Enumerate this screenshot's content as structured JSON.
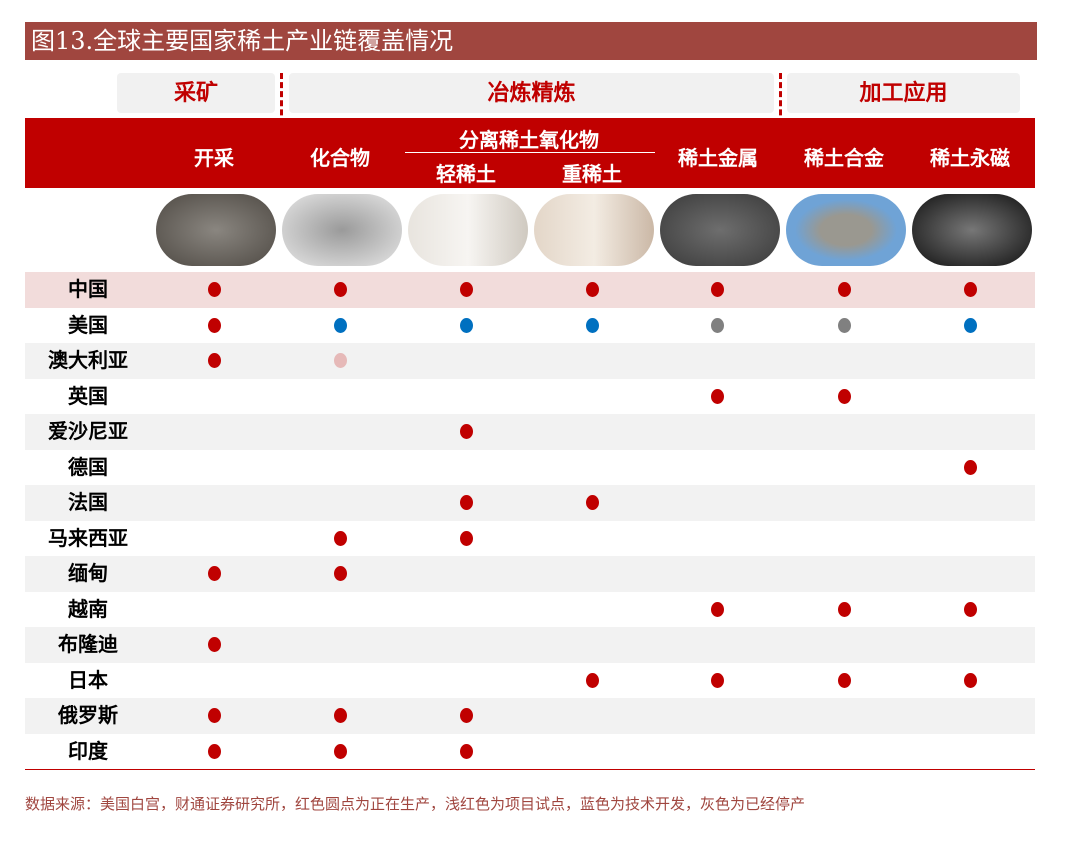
{
  "title": "图13.全球主要国家稀土产业链覆盖情况",
  "stages": [
    "采矿",
    "冶炼精炼",
    "加工应用"
  ],
  "headers": {
    "mining": "开采",
    "compound": "化合物",
    "separation": "分离稀土氧化物",
    "light": "轻稀土",
    "heavy": "重稀土",
    "metal": "稀土金属",
    "alloy": "稀土合金",
    "magnet": "稀土永磁"
  },
  "colors": {
    "R": "#c00000",
    "B": "#0070c0",
    "G": "#808080",
    "P": "#e6b9b8",
    "header": "#c00000",
    "title": "#a0463f"
  },
  "rows": [
    {
      "country": "中国",
      "cells": [
        "R",
        "R",
        "R",
        "R",
        "R",
        "R",
        "R"
      ]
    },
    {
      "country": "美国",
      "cells": [
        "R",
        "B",
        "B",
        "B",
        "G",
        "G",
        "B"
      ]
    },
    {
      "country": "澳大利亚",
      "cells": [
        "R",
        "P",
        "",
        "",
        "",
        "",
        ""
      ]
    },
    {
      "country": "英国",
      "cells": [
        "",
        "",
        "",
        "",
        "R",
        "R",
        ""
      ]
    },
    {
      "country": "爱沙尼亚",
      "cells": [
        "",
        "",
        "R",
        "",
        "",
        "",
        ""
      ]
    },
    {
      "country": "德国",
      "cells": [
        "",
        "",
        "",
        "",
        "",
        "",
        "R"
      ]
    },
    {
      "country": "法国",
      "cells": [
        "",
        "",
        "R",
        "R",
        "",
        "",
        ""
      ]
    },
    {
      "country": "马来西亚",
      "cells": [
        "",
        "R",
        "R",
        "",
        "",
        "",
        ""
      ]
    },
    {
      "country": "缅甸",
      "cells": [
        "R",
        "R",
        "",
        "",
        "",
        "",
        ""
      ]
    },
    {
      "country": "越南",
      "cells": [
        "",
        "",
        "",
        "",
        "R",
        "R",
        "R"
      ]
    },
    {
      "country": "布隆迪",
      "cells": [
        "R",
        "",
        "",
        "",
        "",
        "",
        ""
      ]
    },
    {
      "country": "日本",
      "cells": [
        "",
        "",
        "",
        "R",
        "R",
        "R",
        "R"
      ]
    },
    {
      "country": "俄罗斯",
      "cells": [
        "R",
        "R",
        "R",
        "",
        "",
        "",
        ""
      ]
    },
    {
      "country": "印度",
      "cells": [
        "R",
        "R",
        "R",
        "",
        "",
        "",
        ""
      ]
    }
  ],
  "note": "数据来源：美国白宫，财通证券研究所，红色圆点为正在生产，浅红色为项目试点，蓝色为技术开发，灰色为已经停产"
}
